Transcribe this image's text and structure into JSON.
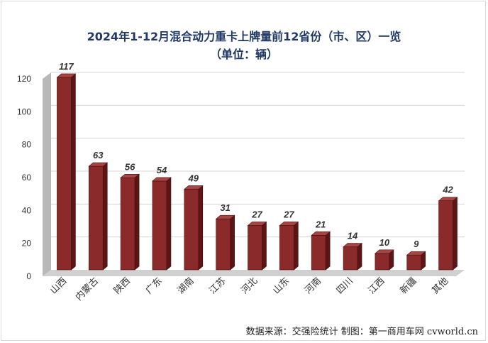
{
  "chart_data": {
    "type": "bar",
    "title": "2024年1-12月混合动力重卡上牌量前12省份（市、区）一览",
    "subtitle": "（单位：辆）",
    "categories": [
      "山西",
      "内蒙古",
      "陕西",
      "广东",
      "湖南",
      "江苏",
      "河北",
      "山东",
      "河南",
      "四川",
      "江西",
      "新疆",
      "其他"
    ],
    "values": [
      117,
      63,
      56,
      54,
      49,
      31,
      27,
      27,
      21,
      14,
      10,
      9,
      42
    ],
    "ylim": [
      0,
      120
    ],
    "yticks": [
      0,
      20,
      40,
      60,
      80,
      100,
      120
    ],
    "grid": true,
    "bar_color": "#8b2a2a",
    "data_labels": true
  },
  "source_note": "数据来源：交强险统计   制图：第一商用车网 cvworld.cn"
}
